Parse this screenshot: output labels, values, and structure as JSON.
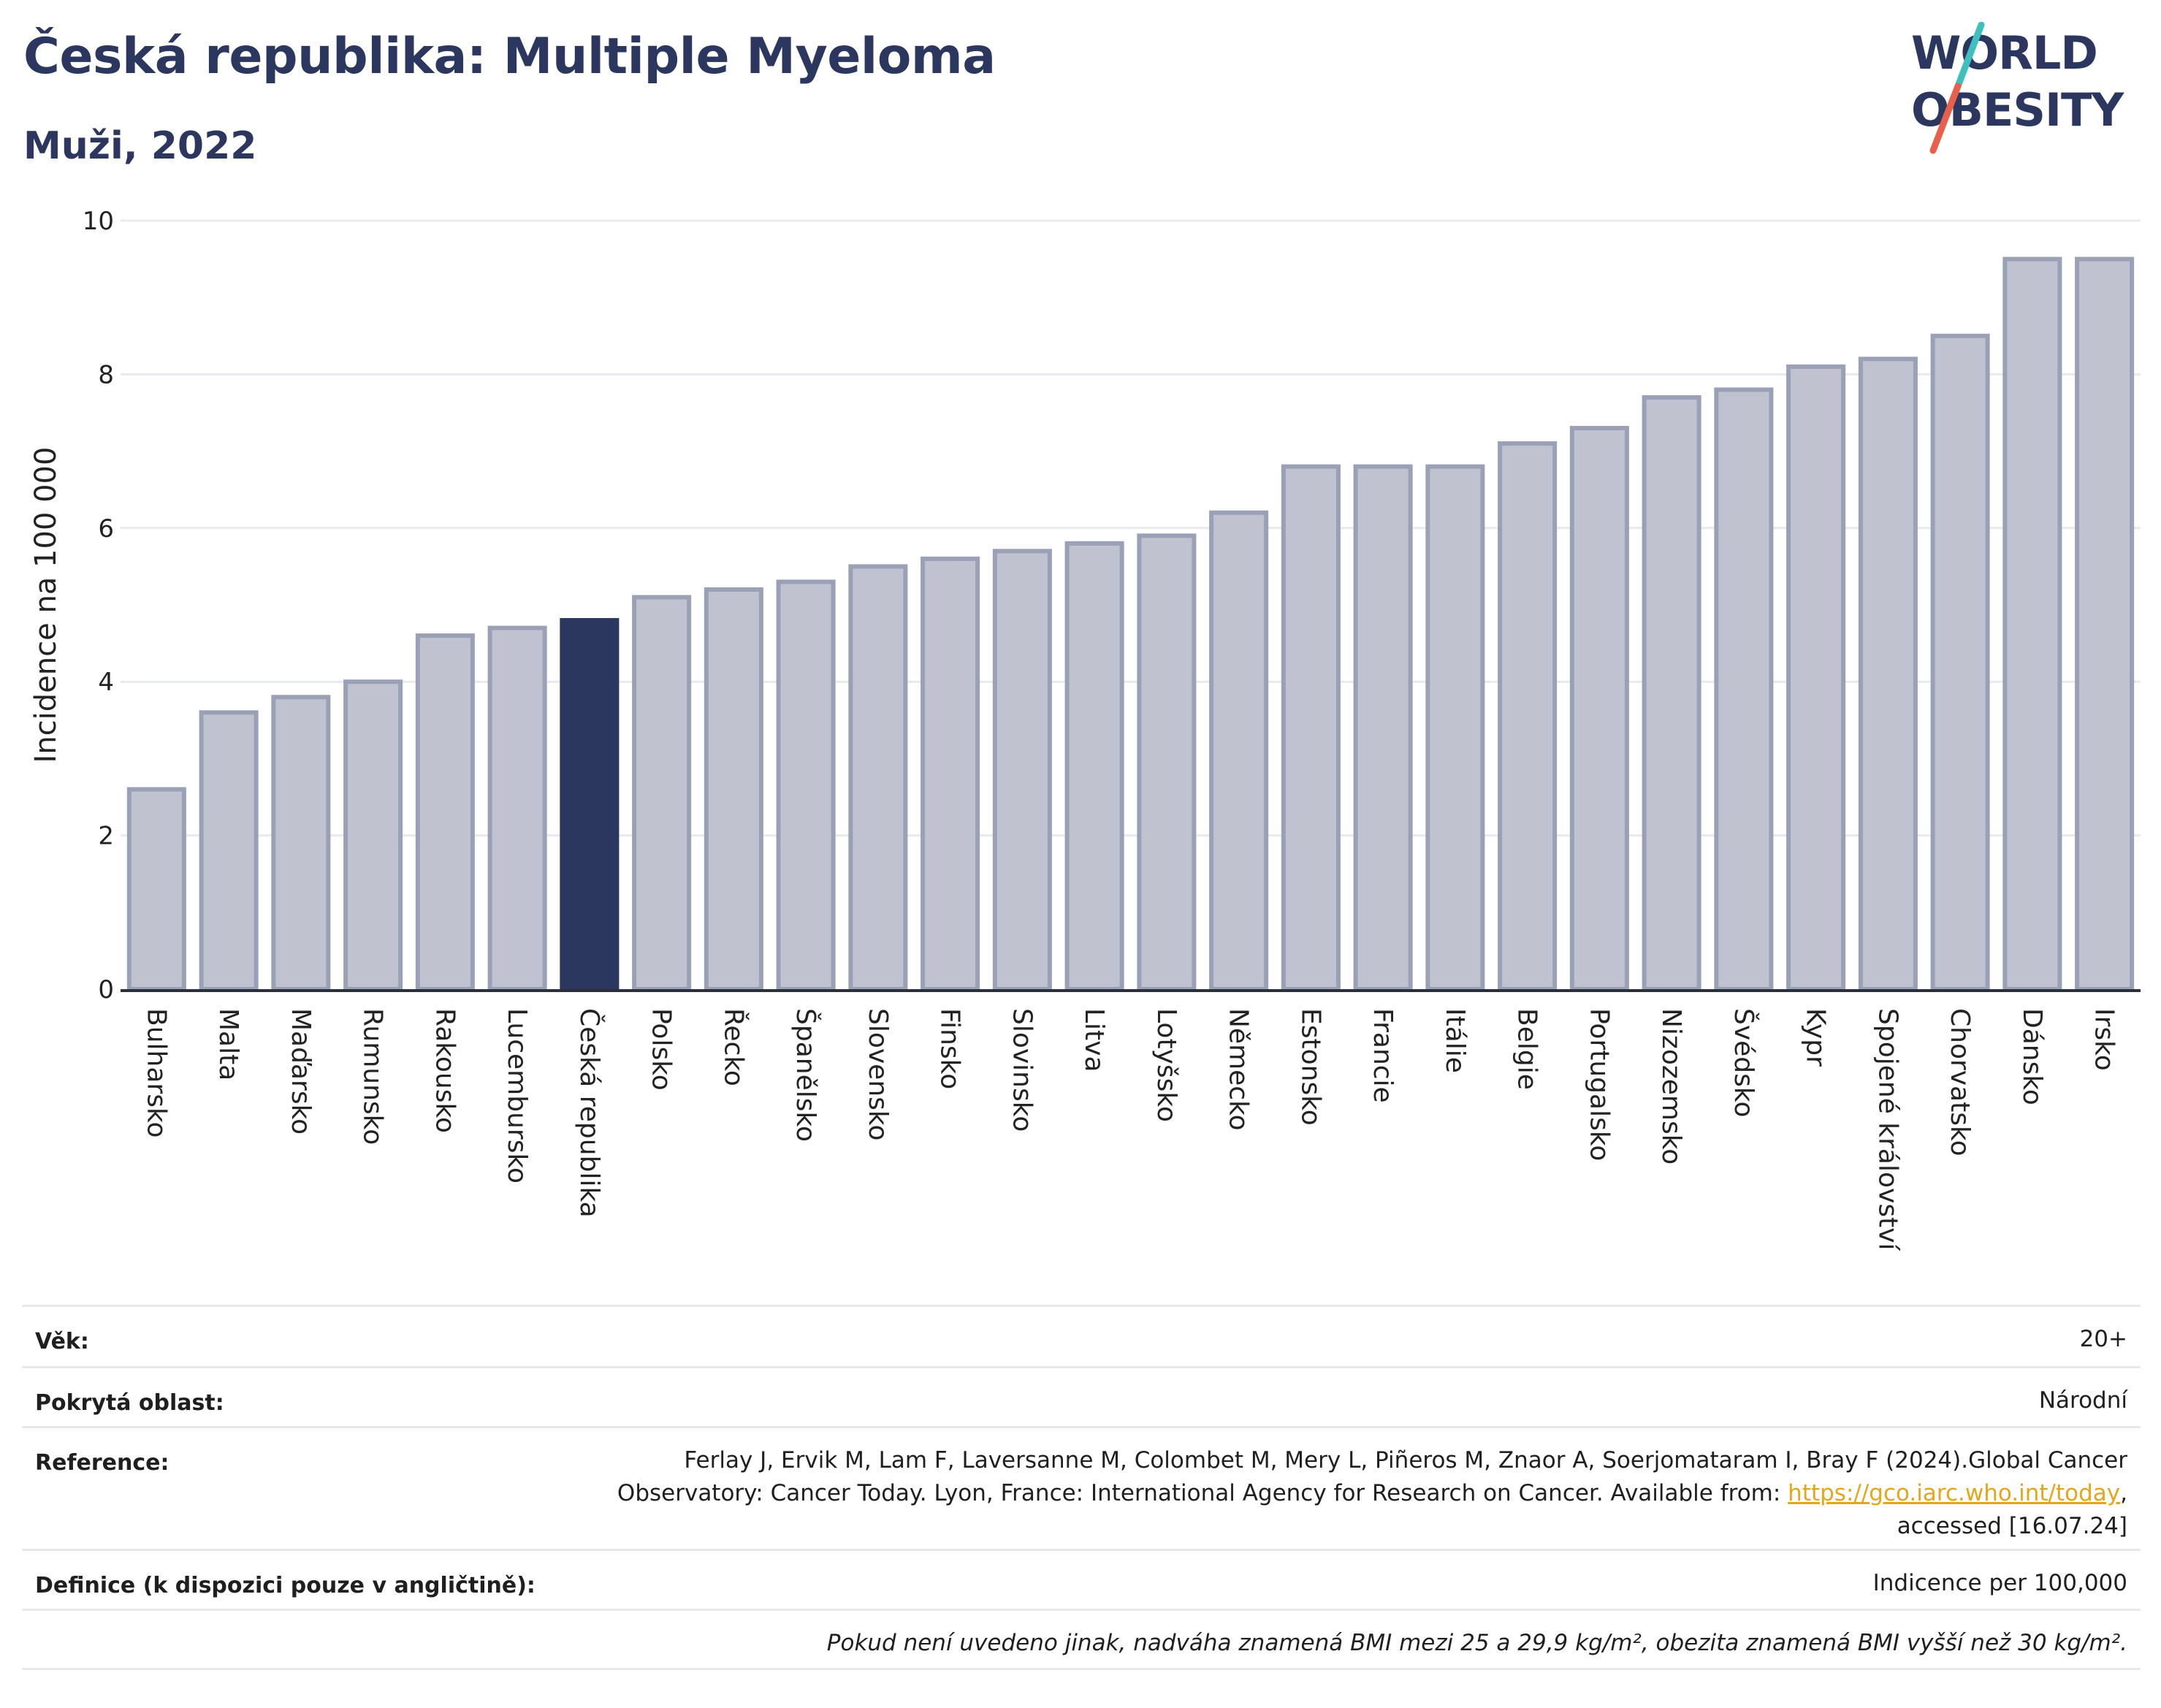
{
  "header": {
    "title": "Česká republika: Multiple Myeloma",
    "subtitle": "Muži, 2022"
  },
  "logo": {
    "line1": "WORLD",
    "line2": "OBESITY",
    "colors": {
      "text": "#2b375f",
      "slash_top": "#3fbfbf",
      "slash_bottom": "#e8604c"
    }
  },
  "chart_data": {
    "type": "bar",
    "title": "",
    "xlabel": "",
    "ylabel": "Incidence na 100 000",
    "ylim": [
      0,
      10
    ],
    "yticks": [
      0,
      2,
      4,
      6,
      8,
      10
    ],
    "grid": true,
    "highlight": "Česká republika",
    "colors": {
      "bar": "#c0c3cf",
      "bar_edge": "#9aa0b6",
      "highlight": "#2b375f"
    },
    "categories": [
      "Bulharsko",
      "Malta",
      "Maďarsko",
      "Rumunsko",
      "Rakousko",
      "Lucembursko",
      "Česká republika",
      "Polsko",
      "Řecko",
      "Španělsko",
      "Slovensko",
      "Finsko",
      "Slovinsko",
      "Litva",
      "Lotyšsko",
      "Německo",
      "Estonsko",
      "Francie",
      "Itálie",
      "Belgie",
      "Portugalsko",
      "Nizozemsko",
      "Švédsko",
      "Kypr",
      "Spojené království",
      "Chorvatsko",
      "Dánsko",
      "Irsko"
    ],
    "values": [
      2.6,
      3.6,
      3.8,
      4.0,
      4.6,
      4.7,
      4.8,
      5.1,
      5.2,
      5.3,
      5.5,
      5.6,
      5.7,
      5.8,
      5.9,
      6.2,
      6.8,
      6.8,
      6.8,
      7.1,
      7.3,
      7.7,
      7.8,
      8.1,
      8.2,
      8.5,
      9.5,
      9.5
    ]
  },
  "info": {
    "age_label": "Věk:",
    "age_value": "20+",
    "area_label": "Pokrytá oblast:",
    "area_value": "Národní",
    "ref_label": "Reference:",
    "ref_text_1": "Ferlay J, Ervik M, Lam F, Laversanne M, Colombet M, Mery L, Piñeros M, Znaor A, Soerjomataram I, Bray F (2024).Global Cancer",
    "ref_text_2": "Observatory: Cancer Today. Lyon, France: International Agency for Research on Cancer. Available from: ",
    "ref_link": "https://gco.iarc.who.int/today",
    "ref_text_3": ",",
    "ref_text_4": "accessed [16.07.24]",
    "def_label": "Definice (k dispozici pouze v angličtině):",
    "def_value": "Indicence per 100,000",
    "note": "Pokud není uvedeno jinak, nadváha znamená BMI mezi 25 a 29,9 kg/m², obezita znamená BMI vyšší než 30 kg/m²."
  }
}
